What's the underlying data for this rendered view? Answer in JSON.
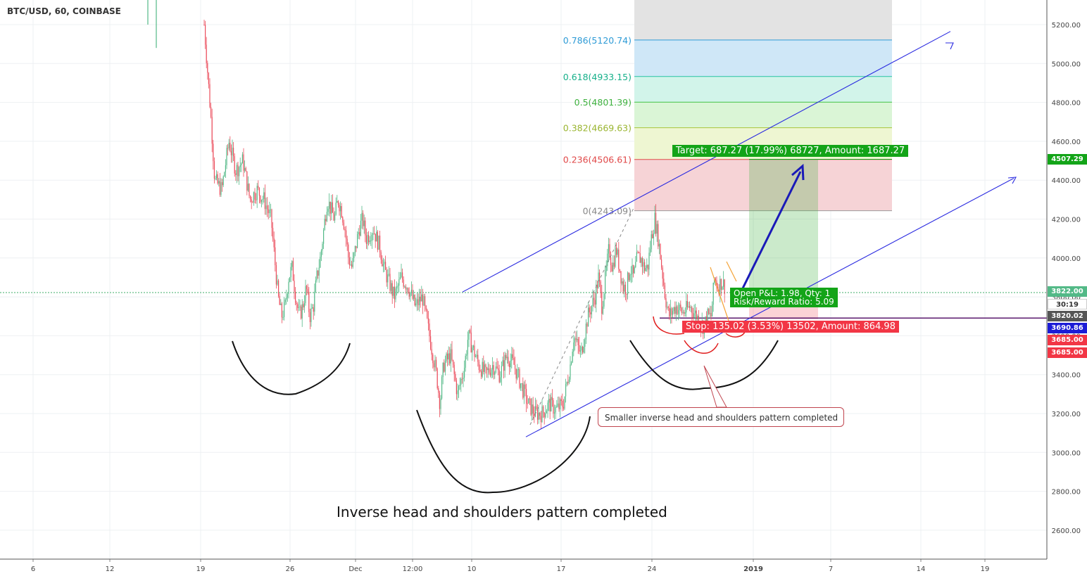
{
  "header": {
    "symbol": "BTC/USD, 60, COINBASE"
  },
  "y_axis": {
    "ticks": [
      "5200.00",
      "5000.00",
      "4800.00",
      "4600.00",
      "4400.00",
      "4200.00",
      "4000.00",
      "3800.00",
      "3600.00",
      "3400.00",
      "3200.00",
      "3000.00",
      "2800.00",
      "2600.00"
    ],
    "tags": {
      "target": "4507.29",
      "last": "3822.00",
      "countdown": "30:19",
      "entry": "3820.02",
      "stop_line": "3690.86",
      "stop1": "3685.00",
      "stop2": "3685.00"
    }
  },
  "x_axis": {
    "ticks": [
      "6",
      "12",
      "19",
      "26",
      "Dec",
      "12:00",
      "10",
      "17",
      "24",
      "2019",
      "7",
      "14",
      "19"
    ]
  },
  "fib": {
    "l786": "0.786(5120.74)",
    "l618": "0.618(4933.15)",
    "l5": "0.5(4801.39)",
    "l382": "0.382(4669.63)",
    "l236": "0.236(4506.61)",
    "l0": "0(4243.09)"
  },
  "position": {
    "target_label": "Target: 687.27 (17.99%) 68727, Amount: 1687.27",
    "stop_label": "Stop: 135.02 (3.53%) 13502, Amount: 864.98",
    "pl_line1": "Open P&L: 1.98, Qty: 1",
    "pl_line2": "Risk/Reward Ratio: 5.09"
  },
  "annotations": {
    "small_pattern": "Smaller inverse head and shoulders pattern completed",
    "big_pattern": "Inverse head and shoulders pattern completed"
  },
  "colors": {
    "up": "#53b987",
    "down": "#eb4d5c",
    "trendline": "#2929e0",
    "target_green": "#13a418",
    "stop_red": "#f23645",
    "fib_blue": "#2e9bd6"
  },
  "chart_data": {
    "type": "candlestick",
    "symbol": "BTC/USD",
    "timeframe": "60",
    "exchange": "COINBASE",
    "ylim": [
      2450,
      5350
    ],
    "x_ticks": [
      "6",
      "12",
      "19",
      "26",
      "Dec",
      "12:00",
      "10",
      "17",
      "24",
      "2019",
      "7",
      "14",
      "19"
    ],
    "fib_levels": [
      {
        "ratio": 0.786,
        "price": 5120.74
      },
      {
        "ratio": 0.618,
        "price": 4933.15
      },
      {
        "ratio": 0.5,
        "price": 4801.39
      },
      {
        "ratio": 0.382,
        "price": 4669.63
      },
      {
        "ratio": 0.236,
        "price": 4506.61
      },
      {
        "ratio": 0,
        "price": 4243.09
      }
    ],
    "close_path": [
      [
        290,
        5200
      ],
      [
        295,
        4950
      ],
      [
        300,
        4700
      ],
      [
        305,
        4400
      ],
      [
        315,
        4350
      ],
      [
        325,
        4600
      ],
      [
        335,
        4450
      ],
      [
        345,
        4500
      ],
      [
        355,
        4300
      ],
      [
        365,
        4350
      ],
      [
        375,
        4300
      ],
      [
        385,
        4200
      ],
      [
        390,
        4000
      ],
      [
        395,
        3800
      ],
      [
        400,
        3700
      ],
      [
        405,
        3750
      ],
      [
        410,
        3900
      ],
      [
        415,
        3950
      ],
      [
        420,
        3800
      ],
      [
        425,
        3700
      ],
      [
        430,
        3750
      ],
      [
        435,
        3850
      ],
      [
        440,
        3700
      ],
      [
        445,
        3750
      ],
      [
        450,
        3900
      ],
      [
        455,
        4000
      ],
      [
        460,
        4150
      ],
      [
        465,
        4300
      ],
      [
        470,
        4250
      ],
      [
        475,
        4200
      ],
      [
        480,
        4300
      ],
      [
        485,
        4250
      ],
      [
        490,
        4150
      ],
      [
        495,
        4000
      ],
      [
        500,
        3950
      ],
      [
        505,
        4050
      ],
      [
        510,
        4150
      ],
      [
        515,
        4200
      ],
      [
        520,
        4100
      ],
      [
        530,
        4150
      ],
      [
        540,
        4050
      ],
      [
        545,
        3950
      ],
      [
        550,
        3900
      ],
      [
        555,
        3850
      ],
      [
        560,
        3800
      ],
      [
        570,
        3900
      ],
      [
        580,
        3850
      ],
      [
        590,
        3750
      ],
      [
        600,
        3800
      ],
      [
        605,
        3700
      ],
      [
        610,
        3600
      ],
      [
        615,
        3500
      ],
      [
        620,
        3400
      ],
      [
        625,
        3250
      ],
      [
        630,
        3450
      ],
      [
        640,
        3500
      ],
      [
        650,
        3300
      ],
      [
        660,
        3450
      ],
      [
        665,
        3600
      ],
      [
        670,
        3550
      ],
      [
        680,
        3450
      ],
      [
        690,
        3400
      ],
      [
        700,
        3450
      ],
      [
        710,
        3400
      ],
      [
        720,
        3500
      ],
      [
        730,
        3450
      ],
      [
        740,
        3350
      ],
      [
        750,
        3250
      ],
      [
        760,
        3200
      ],
      [
        770,
        3200
      ],
      [
        780,
        3250
      ],
      [
        790,
        3220
      ],
      [
        800,
        3250
      ],
      [
        805,
        3350
      ],
      [
        810,
        3450
      ],
      [
        815,
        3600
      ],
      [
        820,
        3550
      ],
      [
        825,
        3500
      ],
      [
        830,
        3600
      ],
      [
        835,
        3700
      ],
      [
        840,
        3750
      ],
      [
        845,
        3800
      ],
      [
        850,
        3900
      ],
      [
        855,
        3750
      ],
      [
        860,
        3900
      ],
      [
        865,
        4050
      ],
      [
        870,
        3950
      ],
      [
        875,
        4050
      ],
      [
        880,
        3950
      ],
      [
        885,
        3850
      ],
      [
        890,
        3850
      ],
      [
        895,
        3950
      ],
      [
        900,
        3900
      ],
      [
        905,
        4000
      ],
      [
        910,
        4000
      ],
      [
        915,
        3950
      ],
      [
        920,
        3950
      ],
      [
        925,
        4100
      ],
      [
        930,
        4200
      ],
      [
        935,
        4100
      ],
      [
        940,
        3950
      ],
      [
        945,
        3800
      ],
      [
        950,
        3700
      ],
      [
        960,
        3750
      ],
      [
        970,
        3720
      ],
      [
        980,
        3750
      ],
      [
        990,
        3700
      ],
      [
        995,
        3660
      ],
      [
        1000,
        3650
      ],
      [
        1005,
        3700
      ],
      [
        1010,
        3700
      ],
      [
        1015,
        3900
      ],
      [
        1020,
        3850
      ],
      [
        1025,
        3880
      ],
      [
        1030,
        3850
      ]
    ],
    "trend_channel": [
      {
        "from": [
          657,
          3825
        ],
        "to": [
          1350,
          5165
        ]
      },
      {
        "from": [
          747,
          3080
        ],
        "to": [
          1440,
          4410
        ]
      }
    ],
    "position_tool": {
      "entry": 3820.02,
      "target": 4507.29,
      "stop": 3685.0,
      "rr": 5.09
    }
  }
}
